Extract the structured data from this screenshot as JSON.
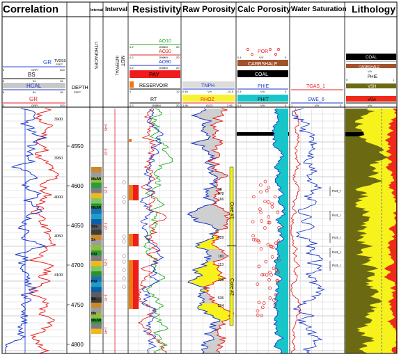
{
  "track_titles": {
    "correlation": "Correlation",
    "depth": "",
    "interval1": "Interval",
    "interval2": "Interval",
    "resistivity": "Resistivity",
    "raw_porosity": "Raw Porosity",
    "calc_porosity": "Calc Porosity",
    "water_saturation": "Water Saturation",
    "lithology": "Lithology"
  },
  "correlation_headers": {
    "gr_top": {
      "name": "GR",
      "unit": "GRPI",
      "left": "0",
      "right": "200",
      "color": "#2a4fd8"
    },
    "tvdss": {
      "name": "TVDSS",
      "unit": "FEET"
    },
    "bs": {
      "name": "BS",
      "unit": "IN",
      "left": "6",
      "right": "16",
      "color": "#000000"
    },
    "hcal": {
      "name": "HCAL",
      "unit": "IN",
      "left": "6",
      "right": "16",
      "color": "#1a36c8"
    },
    "gr_bottom": {
      "name": "GR",
      "unit": "GRPI",
      "left": "0",
      "right": "200",
      "color": "#e82020"
    }
  },
  "depth_header": {
    "name": "DEPTH",
    "unit": "FEET"
  },
  "lithofacies_label": "LITHOFACIES",
  "mdt_label": "MDT",
  "interval_label": "INTERVAL",
  "resistivity_headers": [
    {
      "name": "AO10",
      "unit": "OHMM",
      "left": "0.2",
      "right": "20",
      "color": "#22aa22"
    },
    {
      "name": "AO30",
      "unit": "OHMM",
      "left": "0.2",
      "right": "20",
      "color": "#e82020"
    },
    {
      "name": "AO90",
      "unit": "OHMM",
      "left": "0.2",
      "right": "20",
      "color": "#1a36c8"
    },
    {
      "name": "RT",
      "unit": "OHMM",
      "left": "0.2",
      "right": "20",
      "color": "#000000"
    }
  ],
  "resistivity_boxes": {
    "pay": "PAY",
    "reservoir": "RESERVOIR",
    "scale_left": "0",
    "scale_right": "10"
  },
  "raw_porosity_headers": [
    {
      "name": "TNPH",
      "unit": "V/V",
      "left": "0.45",
      "right": "-0.15",
      "color": "#1a36c8"
    },
    {
      "name": "RHOZ",
      "unit": "G/C3",
      "left": "1.95",
      "right": "2.95",
      "color": "#e82020"
    }
  ],
  "calc_porosity_headers": {
    "por": {
      "name": "POR",
      "unit": "V/V",
      "left": "0.4",
      "right": "0",
      "color": "#e82020"
    },
    "carbshale": "CARBSHALE",
    "coal": "COAL",
    "phie": {
      "name": "PHIE",
      "unit": "V/V",
      "left": "0.4",
      "right": "0",
      "color": "#1a36c8"
    },
    "phit": {
      "name": "PHIT",
      "unit": "V/V",
      "left": "0.4",
      "right": "0"
    }
  },
  "water_sat_headers": [
    {
      "name": "TGAS_1",
      "unit": "",
      "left": "",
      "right": "",
      "color": "#e82020"
    },
    {
      "name": "SWE_6",
      "unit": "V/V",
      "left": "1",
      "right": "0",
      "color": "#1a36c8"
    }
  ],
  "lithology_headers": {
    "coal": "COAL",
    "carbshale": "CARBSHALE",
    "phie": "PHIE",
    "vsh": "VSH",
    "vsa": "VSA",
    "unit": "V/V",
    "left": "0",
    "right": "1"
  },
  "md_depth_labels": [
    "4550",
    "4600",
    "4650",
    "4700",
    "4750",
    "4800"
  ],
  "tvdss_labels": [
    "3900",
    "3950",
    "4000",
    "4050",
    "4100"
  ],
  "mdt_labels": [
    "0-45",
    "1-10",
    "1-15",
    "1-20",
    "1-25",
    "1-30",
    "1-40"
  ],
  "facies": [
    "Mb/Ml",
    "Mb/Ml",
    "Sbs",
    "Sx",
    "HSl",
    "HSl",
    "Sd",
    "Mb",
    "Mb/Ml"
  ],
  "cores": [
    "Core #1",
    "Core #2"
  ],
  "core_numbers": [
    "18",
    "878",
    "166",
    "629",
    "180",
    "113",
    "338",
    "536",
    "364"
  ],
  "port_labels": [
    "Port_I",
    "Port_I",
    "Port_I",
    "Port_I",
    "Port_I"
  ],
  "colors": {
    "grid": "#bcbcbc",
    "pay_red": "#ee1c1c",
    "reservoir_orange": "#f07a10",
    "lith_olive": "#6b6a12",
    "lith_yellow": "#f7f21c",
    "lith_red": "#ee2a1a",
    "phit_cyan": "#18c6c9",
    "core_yellow": "#f2f21a",
    "raw_gray": "#cfcfcf",
    "carbshale_brown": "#a0522d"
  }
}
